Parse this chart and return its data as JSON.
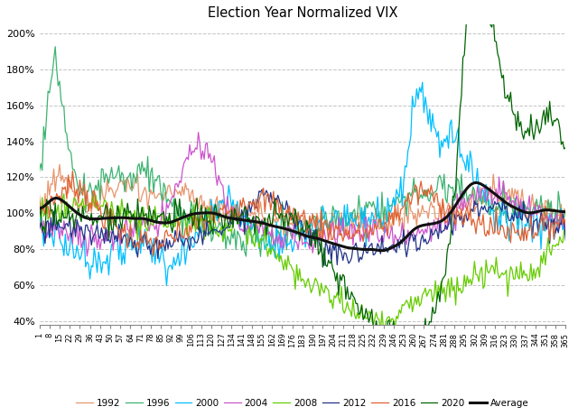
{
  "title": "Election Year Normalized VIX",
  "years": [
    "1992",
    "1996",
    "2000",
    "2004",
    "2008",
    "2012",
    "2016",
    "2020",
    "Average"
  ],
  "colors": {
    "1992": "#E8956D",
    "1996": "#3CB371",
    "2000": "#00BFFF",
    "2004": "#CC55CC",
    "2008": "#66CC00",
    "2012": "#223388",
    "2016": "#E06030",
    "2020": "#006400",
    "Average": "#111111"
  },
  "linewidths": {
    "1992": 0.9,
    "1996": 0.9,
    "2000": 0.9,
    "2004": 0.9,
    "2008": 0.9,
    "2012": 0.9,
    "2016": 0.9,
    "2020": 0.9,
    "Average": 2.2
  },
  "ylim": [
    0.38,
    2.05
  ],
  "yticks": [
    0.4,
    0.6,
    0.8,
    1.0,
    1.2,
    1.4,
    1.6,
    1.8,
    2.0
  ],
  "xticks": [
    1,
    8,
    15,
    22,
    29,
    36,
    43,
    50,
    57,
    64,
    71,
    78,
    85,
    92,
    99,
    106,
    113,
    120,
    127,
    134,
    141,
    148,
    155,
    162,
    169,
    176,
    183,
    190,
    197,
    204,
    211,
    218,
    225,
    232,
    239,
    246,
    253,
    260,
    267,
    274,
    281,
    288,
    295,
    302,
    309,
    316,
    323,
    330,
    337,
    344,
    351,
    358,
    365
  ],
  "background_color": "#ffffff",
  "grid_color": "#aaaaaa"
}
